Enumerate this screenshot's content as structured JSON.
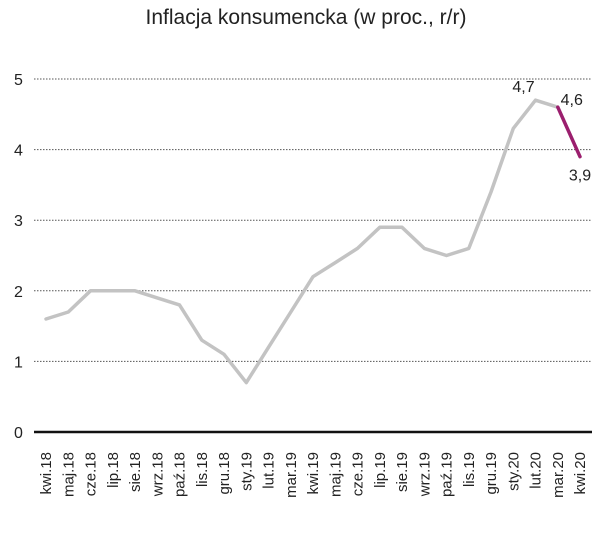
{
  "chart_data": {
    "type": "line",
    "title": "Inflacja konsumencka (w proc., r/r)",
    "xlabel": "",
    "ylabel": "",
    "ylim": [
      0,
      5
    ],
    "yticks": [
      "0",
      "1",
      "2",
      "3",
      "4",
      "5"
    ],
    "grid": true,
    "categories": [
      "kwi.18",
      "maj.18",
      "cze.18",
      "lip.18",
      "sie.18",
      "wrz.18",
      "paź.18",
      "lis.18",
      "gru.18",
      "sty.19",
      "lut.19",
      "mar.19",
      "kwi.19",
      "maj.19",
      "cze.19",
      "lip.19",
      "sie.19",
      "wrz.19",
      "paź.19",
      "lis.19",
      "gru.19",
      "sty.20",
      "lut.20",
      "mar.20",
      "kwi.20"
    ],
    "values": [
      1.6,
      1.7,
      2.0,
      2.0,
      2.0,
      1.9,
      1.8,
      1.3,
      1.1,
      0.7,
      1.2,
      1.7,
      2.2,
      2.4,
      2.6,
      2.9,
      2.9,
      2.6,
      2.5,
      2.6,
      3.4,
      4.3,
      4.7,
      4.6,
      3.9
    ],
    "highlight_from_index": 23,
    "colors": {
      "main": "#c3c3c3",
      "highlight": "#9b1f6e",
      "grid": "#555555",
      "axis": "#111111"
    },
    "data_labels": [
      {
        "index": 22,
        "text": "4,7"
      },
      {
        "index": 23,
        "text": "4,6"
      },
      {
        "index": 24,
        "text": "3,9"
      }
    ]
  }
}
